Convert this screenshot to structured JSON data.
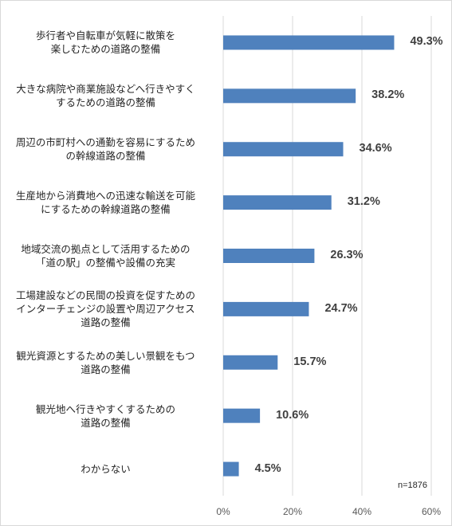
{
  "chart_data": {
    "type": "bar",
    "orientation": "horizontal",
    "categories": [
      "歩行者や自転車が気軽に散策を\n楽しむための道路の整備",
      "大きな病院や商業施設などへ行きやすく\nするための道路の整備",
      "周辺の市町村への通勤を容易にするため\nの幹線道路の整備",
      "生産地から消費地への迅速な輸送を可能\nにするための幹線道路の整備",
      "地域交流の拠点として活用するための\n「道の駅」の整備や設備の充実",
      "工場建設などの民間の投資を促すための\nインターチェンジの設置や周辺アクセス\n道路の整備",
      "観光資源とするための美しい景観をもつ\n道路の整備",
      "観光地へ行きやすくするための\n道路の整備",
      "わからない"
    ],
    "values": [
      49.3,
      38.2,
      34.6,
      31.2,
      26.3,
      24.7,
      15.7,
      10.6,
      4.5
    ],
    "value_labels": [
      "49.3%",
      "38.2%",
      "34.6%",
      "31.2%",
      "26.3%",
      "24.7%",
      "15.7%",
      "10.6%",
      "4.5%"
    ],
    "xlim": [
      0,
      60
    ],
    "xticks": [
      0,
      20,
      40,
      60
    ],
    "xtick_labels": [
      "0%",
      "20%",
      "40%",
      "60%"
    ],
    "grid": true,
    "bar_color": "#4f81bd",
    "grid_color": "#d9d9d9",
    "note": "n=1876"
  }
}
